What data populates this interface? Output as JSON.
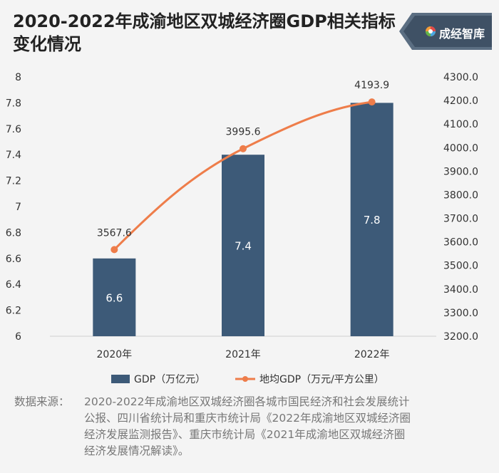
{
  "title": "2020-2022年成渝地区双城经济圈GDP相关指标变化情况",
  "brand": "成经智库",
  "colors": {
    "bar": "#3d5a78",
    "line": "#ee7d4a",
    "axis_text": "#333333",
    "background": "#f4f4f4"
  },
  "chart_data": {
    "type": "bar",
    "categories": [
      "2020年",
      "2021年",
      "2022年"
    ],
    "series": [
      {
        "name": "GDP（万亿元）",
        "type": "bar",
        "axis": "left",
        "values": [
          6.6,
          7.4,
          7.8
        ],
        "labels": [
          "6.6",
          "7.4",
          "7.8"
        ]
      },
      {
        "name": "地均GDP（万元/平方公里）",
        "type": "line",
        "axis": "right",
        "values": [
          3567.6,
          3995.6,
          4193.9
        ],
        "labels": [
          "3567.6",
          "3995.6",
          "4193.9"
        ]
      }
    ],
    "ylim_left": [
      6,
      8
    ],
    "yticks_left": [
      "6",
      "6.2",
      "6.4",
      "6.6",
      "6.8",
      "7",
      "7.2",
      "7.4",
      "7.6",
      "7.8",
      "8"
    ],
    "ylim_right": [
      3200,
      4300
    ],
    "yticks_right": [
      "3200.0",
      "3300.0",
      "3400.0",
      "3500.0",
      "3600.0",
      "3700.0",
      "3800.0",
      "3900.0",
      "4000.0",
      "4100.0",
      "4200.0",
      "4300.0"
    ],
    "legend_position": "bottom",
    "grid": false
  },
  "source": {
    "label": "数据来源：",
    "lines": [
      "2020-2022年成渝地区双城经济圈各城市国民经济和社会发展统计",
      "公报、四川省统计局和重庆市统计局《2022年成渝地区双城经济圈",
      "经济发展监测报告》、重庆市统计局《2021年成渝地区双城经济圈",
      "经济发展情况解读》。"
    ]
  }
}
